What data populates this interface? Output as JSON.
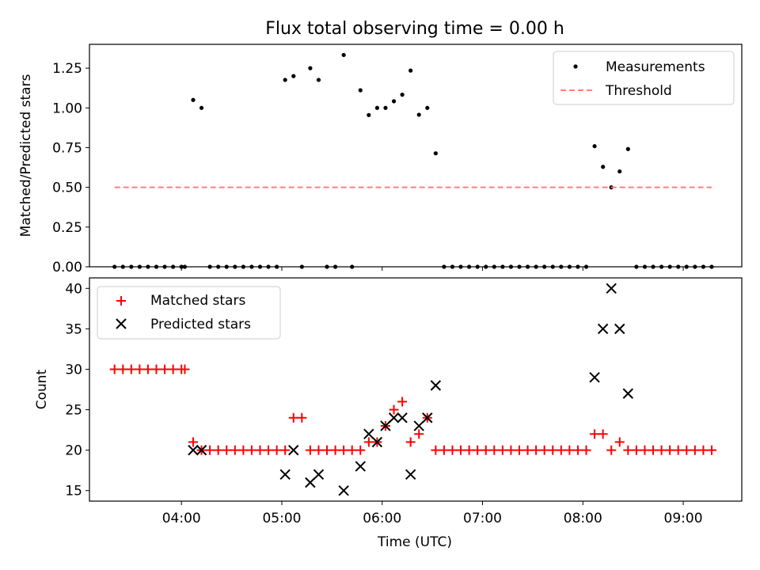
{
  "chart_data": [
    {
      "type": "scatter",
      "title": "Flux total observing time = 0.00 h",
      "xlabel": "",
      "ylabel": "Matched/Predicted stars",
      "ylim": [
        0,
        1.4
      ],
      "yticks": [
        0,
        0.25,
        0.5,
        0.75,
        1.0,
        1.25
      ],
      "ytick_labels": [
        "0.00",
        "0.25",
        "0.50",
        "0.75",
        "1.00",
        "1.25"
      ],
      "xlim": [
        "03:05",
        "09:35"
      ],
      "xticks": [
        "04:00",
        "05:00",
        "06:00",
        "07:00",
        "08:00",
        "09:00"
      ],
      "xtick_labels": [],
      "legend_position": "top-right",
      "series": [
        {
          "name": "Measurements",
          "kind": "points",
          "color": "#000000",
          "points": [
            [
              "03:20",
              0
            ],
            [
              "03:25",
              0
            ],
            [
              "03:30",
              0
            ],
            [
              "03:35",
              0
            ],
            [
              "03:40",
              0
            ],
            [
              "03:45",
              0
            ],
            [
              "03:50",
              0
            ],
            [
              "03:55",
              0
            ],
            [
              "04:00",
              0
            ],
            [
              "04:02",
              0
            ],
            [
              "04:07",
              1.05
            ],
            [
              "04:12",
              1.0
            ],
            [
              "04:17",
              0
            ],
            [
              "04:22",
              0
            ],
            [
              "04:27",
              0
            ],
            [
              "04:32",
              0
            ],
            [
              "04:37",
              0
            ],
            [
              "04:42",
              0
            ],
            [
              "04:47",
              0
            ],
            [
              "04:52",
              0
            ],
            [
              "04:57",
              0
            ],
            [
              "05:02",
              1.176
            ],
            [
              "05:07",
              1.2
            ],
            [
              "05:12",
              0
            ],
            [
              "05:17",
              1.25
            ],
            [
              "05:22",
              1.176
            ],
            [
              "05:27",
              0
            ],
            [
              "05:32",
              0
            ],
            [
              "05:37",
              1.333
            ],
            [
              "05:42",
              0
            ],
            [
              "05:47",
              1.111
            ],
            [
              "05:52",
              0.955
            ],
            [
              "05:57",
              1.0
            ],
            [
              "06:02",
              1.0
            ],
            [
              "06:07",
              1.042
            ],
            [
              "06:12",
              1.083
            ],
            [
              "06:17",
              1.235
            ],
            [
              "06:22",
              0.957
            ],
            [
              "06:27",
              1.0
            ],
            [
              "06:32",
              0.714
            ],
            [
              "06:37",
              0
            ],
            [
              "06:42",
              0
            ],
            [
              "06:47",
              0
            ],
            [
              "06:52",
              0
            ],
            [
              "06:57",
              0
            ],
            [
              "07:02",
              0
            ],
            [
              "07:07",
              0
            ],
            [
              "07:12",
              0
            ],
            [
              "07:17",
              0
            ],
            [
              "07:22",
              0
            ],
            [
              "07:27",
              0
            ],
            [
              "07:32",
              0
            ],
            [
              "07:37",
              0
            ],
            [
              "07:42",
              0
            ],
            [
              "07:47",
              0
            ],
            [
              "07:52",
              0
            ],
            [
              "07:57",
              0
            ],
            [
              "08:02",
              0
            ],
            [
              "08:07",
              0.759
            ],
            [
              "08:12",
              0.629
            ],
            [
              "08:17",
              0.5
            ],
            [
              "08:22",
              0.6
            ],
            [
              "08:27",
              0.741
            ],
            [
              "08:32",
              0
            ],
            [
              "08:37",
              0
            ],
            [
              "08:42",
              0
            ],
            [
              "08:47",
              0
            ],
            [
              "08:52",
              0
            ],
            [
              "08:57",
              0
            ],
            [
              "09:02",
              0
            ],
            [
              "09:07",
              0
            ],
            [
              "09:12",
              0
            ],
            [
              "09:17",
              0
            ]
          ]
        },
        {
          "name": "Threshold",
          "kind": "dashed-line",
          "color": "#ff7f7f",
          "points": [
            [
              "03:20",
              0.5
            ],
            [
              "09:17",
              0.5
            ]
          ]
        }
      ]
    },
    {
      "type": "scatter",
      "title": "",
      "xlabel": "Time (UTC)",
      "ylabel": "Count",
      "ylim": [
        13.7,
        41.3
      ],
      "yticks": [
        15,
        20,
        25,
        30,
        35,
        40
      ],
      "ytick_labels": [
        "15",
        "20",
        "25",
        "30",
        "35",
        "40"
      ],
      "xlim": [
        "03:05",
        "09:35"
      ],
      "xticks": [
        "04:00",
        "05:00",
        "06:00",
        "07:00",
        "08:00",
        "09:00"
      ],
      "xtick_labels": [
        "04:00",
        "05:00",
        "06:00",
        "07:00",
        "08:00",
        "09:00"
      ],
      "legend_position": "top-left",
      "series": [
        {
          "name": "Matched stars",
          "kind": "plus",
          "color": "#ff0000",
          "points": [
            [
              "03:20",
              30
            ],
            [
              "03:25",
              30
            ],
            [
              "03:30",
              30
            ],
            [
              "03:35",
              30
            ],
            [
              "03:40",
              30
            ],
            [
              "03:45",
              30
            ],
            [
              "03:50",
              30
            ],
            [
              "03:55",
              30
            ],
            [
              "04:00",
              30
            ],
            [
              "04:02",
              30
            ],
            [
              "04:07",
              21
            ],
            [
              "04:12",
              20
            ],
            [
              "04:17",
              20
            ],
            [
              "04:22",
              20
            ],
            [
              "04:27",
              20
            ],
            [
              "04:32",
              20
            ],
            [
              "04:37",
              20
            ],
            [
              "04:42",
              20
            ],
            [
              "04:47",
              20
            ],
            [
              "04:52",
              20
            ],
            [
              "04:57",
              20
            ],
            [
              "05:02",
              20
            ],
            [
              "05:07",
              24
            ],
            [
              "05:12",
              24
            ],
            [
              "05:17",
              20
            ],
            [
              "05:22",
              20
            ],
            [
              "05:27",
              20
            ],
            [
              "05:32",
              20
            ],
            [
              "05:37",
              20
            ],
            [
              "05:42",
              20
            ],
            [
              "05:47",
              20
            ],
            [
              "05:52",
              21
            ],
            [
              "05:57",
              21
            ],
            [
              "06:02",
              23
            ],
            [
              "06:07",
              25
            ],
            [
              "06:12",
              26
            ],
            [
              "06:17",
              21
            ],
            [
              "06:22",
              22
            ],
            [
              "06:27",
              24
            ],
            [
              "06:32",
              20
            ],
            [
              "06:37",
              20
            ],
            [
              "06:42",
              20
            ],
            [
              "06:47",
              20
            ],
            [
              "06:52",
              20
            ],
            [
              "06:57",
              20
            ],
            [
              "07:02",
              20
            ],
            [
              "07:07",
              20
            ],
            [
              "07:12",
              20
            ],
            [
              "07:17",
              20
            ],
            [
              "07:22",
              20
            ],
            [
              "07:27",
              20
            ],
            [
              "07:32",
              20
            ],
            [
              "07:37",
              20
            ],
            [
              "07:42",
              20
            ],
            [
              "07:47",
              20
            ],
            [
              "07:52",
              20
            ],
            [
              "07:57",
              20
            ],
            [
              "08:02",
              20
            ],
            [
              "08:07",
              22
            ],
            [
              "08:12",
              22
            ],
            [
              "08:17",
              20
            ],
            [
              "08:22",
              21
            ],
            [
              "08:27",
              20
            ],
            [
              "08:32",
              20
            ],
            [
              "08:37",
              20
            ],
            [
              "08:42",
              20
            ],
            [
              "08:47",
              20
            ],
            [
              "08:52",
              20
            ],
            [
              "08:57",
              20
            ],
            [
              "09:02",
              20
            ],
            [
              "09:07",
              20
            ],
            [
              "09:12",
              20
            ],
            [
              "09:17",
              20
            ]
          ]
        },
        {
          "name": "Predicted stars",
          "kind": "cross",
          "color": "#000000",
          "points": [
            [
              "04:07",
              20
            ],
            [
              "04:12",
              20
            ],
            [
              "05:02",
              17
            ],
            [
              "05:07",
              20
            ],
            [
              "05:17",
              16
            ],
            [
              "05:22",
              17
            ],
            [
              "05:37",
              15
            ],
            [
              "05:47",
              18
            ],
            [
              "05:52",
              22
            ],
            [
              "05:57",
              21
            ],
            [
              "06:02",
              23
            ],
            [
              "06:07",
              24
            ],
            [
              "06:12",
              24
            ],
            [
              "06:17",
              17
            ],
            [
              "06:22",
              23
            ],
            [
              "06:27",
              24
            ],
            [
              "06:32",
              28
            ],
            [
              "08:07",
              29
            ],
            [
              "08:12",
              35
            ],
            [
              "08:17",
              40
            ],
            [
              "08:22",
              35
            ],
            [
              "08:27",
              27
            ]
          ]
        }
      ]
    }
  ]
}
